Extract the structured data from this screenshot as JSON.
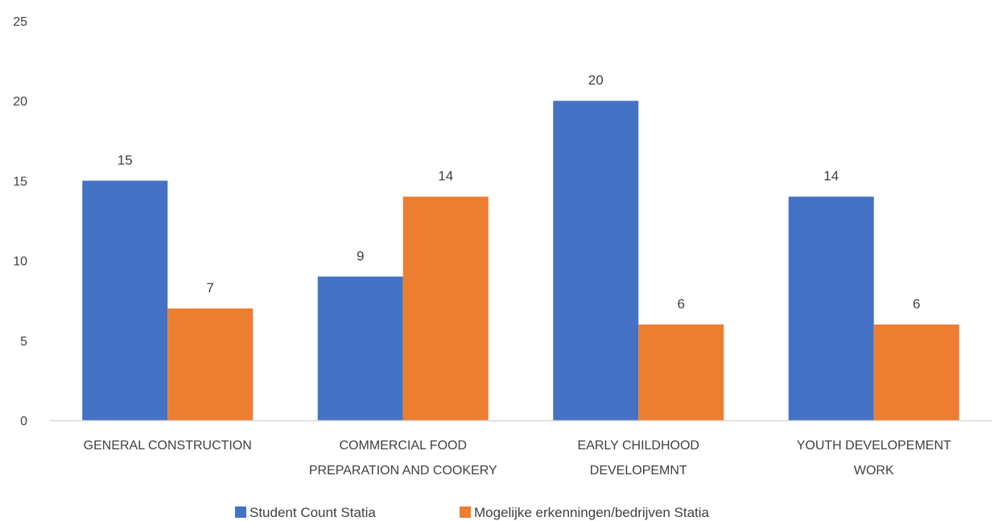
{
  "chart_data": {
    "type": "bar",
    "title": "",
    "xlabel": "",
    "ylabel": "",
    "ylim": [
      0,
      25
    ],
    "yticks": [
      0,
      5,
      10,
      15,
      20,
      25
    ],
    "grid": false,
    "legend_position": "bottom",
    "categories": [
      [
        "GENERAL CONSTRUCTION"
      ],
      [
        "COMMERCIAL FOOD",
        "PREPARATION AND COOKERY"
      ],
      [
        "EARLY CHILDHOOD",
        "DEVELOPEMNT"
      ],
      [
        "YOUTH DEVELOPEMENT",
        "WORK"
      ]
    ],
    "series": [
      {
        "name": "Student Count Statia",
        "color": "#4472C4",
        "values": [
          15,
          9,
          20,
          14
        ]
      },
      {
        "name": "Mogelijke erkenningen/bedrijven Statia",
        "color": "#ED7D31",
        "values": [
          7,
          14,
          6,
          6
        ]
      }
    ],
    "axis_color": "#D9D9D9",
    "text_color": "#404040"
  }
}
